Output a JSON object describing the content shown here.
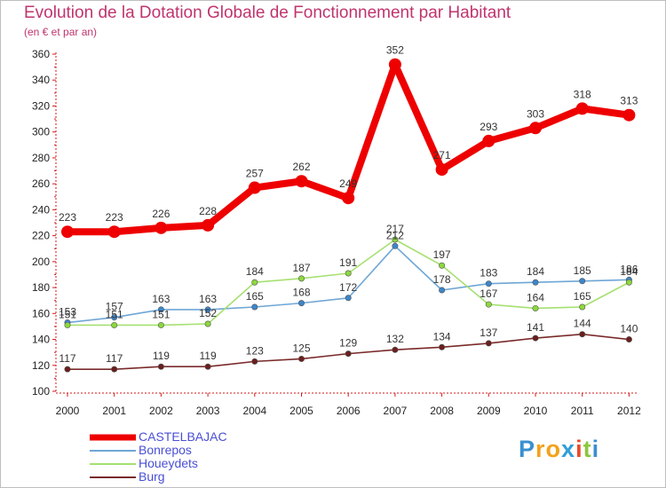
{
  "chart_data": {
    "type": "line",
    "title": "Evolution de la Dotation Globale de Fonctionnement par Habitant",
    "subtitle": "(en € et par an)",
    "xlabel": "",
    "ylabel": "",
    "x": [
      "2000",
      "2001",
      "2002",
      "2003",
      "2004",
      "2005",
      "2006",
      "2007",
      "2008",
      "2009",
      "2010",
      "2011",
      "2012"
    ],
    "ylim": [
      100,
      360
    ],
    "yticks": [
      100,
      120,
      140,
      160,
      180,
      200,
      220,
      240,
      260,
      280,
      300,
      320,
      340,
      360
    ],
    "grid": false,
    "legend_position": "bottom-left",
    "series": [
      {
        "name": "CASTELBAJAC",
        "color": "#ee0000",
        "emphasis": true,
        "values": [
          223,
          223,
          226,
          228,
          257,
          262,
          249,
          352,
          271,
          293,
          303,
          318,
          313
        ]
      },
      {
        "name": "Bonrepos",
        "color": "#6ea6d6",
        "marker_color": "#3c86cc",
        "values": [
          153,
          157,
          163,
          163,
          165,
          168,
          172,
          212,
          178,
          183,
          184,
          185,
          186
        ]
      },
      {
        "name": "Houeydets",
        "color": "#a6e070",
        "marker_color": "#8cd83c",
        "values": [
          151,
          151,
          151,
          152,
          184,
          187,
          191,
          217,
          197,
          167,
          164,
          165,
          184
        ]
      },
      {
        "name": "Burg",
        "color": "#7a2a2a",
        "marker_color": "#6a1e1e",
        "values": [
          117,
          117,
          119,
          119,
          123,
          125,
          129,
          132,
          134,
          137,
          141,
          144,
          140
        ]
      }
    ]
  },
  "logo": {
    "letters": [
      "P",
      "r",
      "o",
      "x",
      "i",
      "t",
      "i"
    ],
    "colors": [
      "#3a8fd0",
      "#f2a21b",
      "#f2a21b",
      "#2f9fd8",
      "#e84a2a",
      "#8cc63e",
      "#3a8fd0"
    ]
  }
}
